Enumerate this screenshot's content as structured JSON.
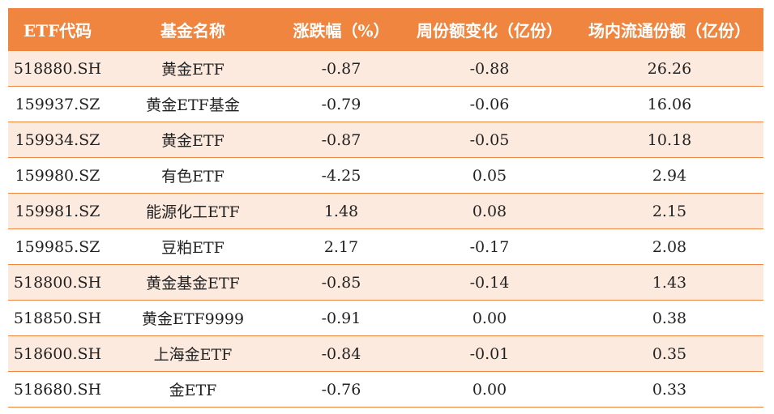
{
  "table": {
    "headers": [
      "ETF代码",
      "基金名称",
      "涨跌幅（%）",
      "周份额变化（亿份）",
      "场内流通份额（亿份）"
    ],
    "rows": [
      [
        "518880.SH",
        "黄金ETF",
        "-0.87",
        "-0.88",
        "26.26"
      ],
      [
        "159937.SZ",
        "黄金ETF基金",
        "-0.79",
        "-0.06",
        "16.06"
      ],
      [
        "159934.SZ",
        "黄金ETF",
        "-0.87",
        "-0.05",
        "10.18"
      ],
      [
        "159980.SZ",
        "有色ETF",
        "-4.25",
        "0.05",
        "2.94"
      ],
      [
        "159981.SZ",
        "能源化工ETF",
        "1.48",
        "0.08",
        "2.15"
      ],
      [
        "159985.SZ",
        "豆粕ETF",
        "2.17",
        "-0.17",
        "2.08"
      ],
      [
        "518800.SH",
        "黄金基金ETF",
        "-0.85",
        "-0.14",
        "1.43"
      ],
      [
        "518850.SH",
        "黄金ETF9999",
        "-0.91",
        "0.00",
        "0.38"
      ],
      [
        "518600.SH",
        "上海金ETF",
        "-0.84",
        "-0.01",
        "0.35"
      ],
      [
        "518680.SH",
        "金ETF",
        "-0.76",
        "0.00",
        "0.33"
      ]
    ]
  },
  "colors": {
    "header_bg": "#f08540",
    "header_text": "#ffffff",
    "stripe_bg": "#fdeadf",
    "row_divider": "#f08540"
  }
}
